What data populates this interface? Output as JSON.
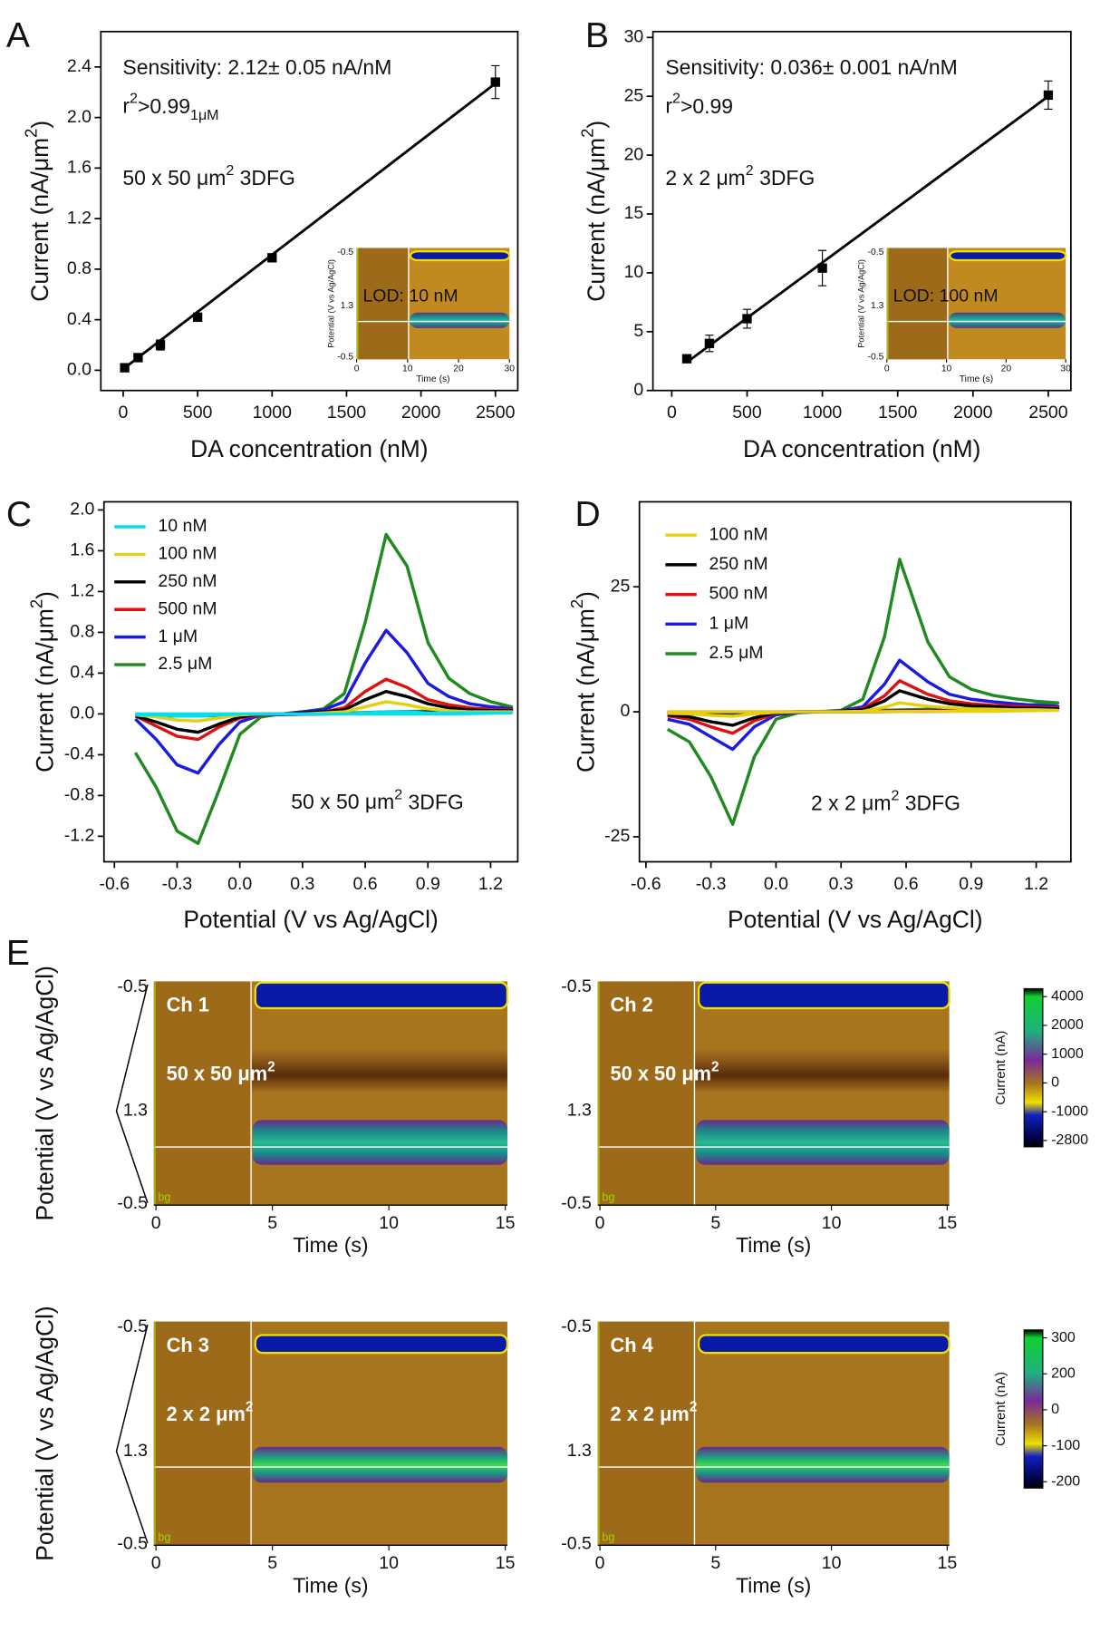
{
  "chart_data": [
    {
      "type": "scatter",
      "panel_label": "A",
      "x_label": "DA concentration (nM)",
      "y_label": [
        "Current (nA/μm",
        "2",
        ")"
      ],
      "x": [
        10,
        100,
        250,
        500,
        1000,
        2500
      ],
      "values": [
        0.02,
        0.1,
        0.2,
        0.42,
        0.89,
        2.28
      ],
      "errors": [
        0.02,
        0.02,
        0.04,
        0.03,
        0.03,
        0.13
      ],
      "color": "#000000",
      "fit": {
        "x": [
          0,
          2500
        ],
        "values": [
          0.01,
          2.27
        ]
      },
      "xlim": [
        -150,
        2650
      ],
      "ylim": [
        -0.16,
        2.68
      ],
      "xticks": [
        0,
        500,
        1000,
        1500,
        2000,
        2500
      ],
      "yticks": [
        {
          "value": 0,
          "label": "0.0"
        },
        0.4,
        0.8,
        1.2,
        1.6,
        {
          "value": 2,
          "label": "2.0"
        },
        2.4
      ],
      "sensitivity": "Sensitivity: 2.12± 0.05 nA/nM",
      "r_squared": [
        "r",
        "2",
        ">0.99"
      ],
      "r_squared_note": "1μM",
      "electrode": [
        "50 x 50 μm",
        "2",
        " 3DFG"
      ],
      "inset": {
        "label": "LOD: 10 nM",
        "x_label": "Time (s)",
        "y_label": "Potential (V vs Ag/AgCl)",
        "xlim": [
          0,
          30
        ],
        "xticks": [
          0,
          10,
          20,
          30
        ],
        "ytick_labels": [
          "-0.5",
          "1.3",
          "-0.5"
        ]
      }
    },
    {
      "type": "scatter",
      "panel_label": "B",
      "x_label": "DA concentration (nM)",
      "y_label": [
        "Current (nA/μm",
        "2",
        ")"
      ],
      "x": [
        100,
        250,
        500,
        1000,
        2500
      ],
      "values": [
        2.7,
        4.0,
        6.1,
        10.4,
        25.1
      ],
      "errors": [
        0.3,
        0.7,
        0.8,
        1.5,
        1.2
      ],
      "color": "#000000",
      "fit": {
        "x": [
          100,
          2500
        ],
        "values": [
          2.4,
          25.0
        ]
      },
      "xlim": [
        -125,
        2650
      ],
      "ylim": [
        0,
        30.5
      ],
      "xticks": [
        0,
        500,
        1000,
        1500,
        2000,
        2500
      ],
      "yticks": [
        0,
        5,
        10,
        15,
        20,
        25,
        30
      ],
      "sensitivity": "Sensitivity: 0.036± 0.001 nA/nM",
      "r_squared": [
        "r",
        "2",
        ">0.99"
      ],
      "electrode": [
        "2 x 2 μm",
        "2",
        " 3DFG"
      ],
      "inset": {
        "label": "LOD: 100 nM",
        "x_label": "Time (s)",
        "y_label": "Potential (V vs Ag/AgCl)",
        "xlim": [
          0,
          30
        ],
        "xticks": [
          0,
          10,
          20,
          30
        ],
        "ytick_labels": [
          "-0.5",
          "1.3",
          "-0.5"
        ]
      }
    },
    {
      "type": "line",
      "panel_label": "C",
      "x_label": "Potential (V vs Ag/AgCl)",
      "y_label": [
        "Current (nA/μm",
        "2",
        ")"
      ],
      "x": [
        -0.5,
        -0.4,
        -0.3,
        -0.2,
        -0.1,
        0.0,
        0.1,
        0.2,
        0.3,
        0.4,
        0.5,
        0.6,
        0.7,
        0.8,
        0.9,
        1.0,
        1.1,
        1.2,
        1.3,
        1.0,
        0.7,
        0.4,
        0.1,
        -0.2,
        -0.5
      ],
      "series": [
        {
          "name": "10 nM",
          "color": "#00e0f0",
          "values": [
            -0.01,
            -0.01,
            -0.02,
            -0.02,
            -0.01,
            0,
            0,
            0,
            0,
            0,
            0,
            0.01,
            0.02,
            0.02,
            0.01,
            0.01,
            0.01,
            0.01,
            0.01,
            0,
            0,
            0,
            0,
            0,
            0
          ]
        },
        {
          "name": "100 nM",
          "color": "#e6cf10",
          "values": [
            -0.01,
            -0.03,
            -0.06,
            -0.07,
            -0.04,
            -0.01,
            0,
            0,
            0,
            0.01,
            0.02,
            0.07,
            0.12,
            0.09,
            0.05,
            0.03,
            0.02,
            0.02,
            0.02,
            0.01,
            0,
            0,
            0,
            0,
            0
          ]
        },
        {
          "name": "250 nM",
          "color": "#000000",
          "values": [
            -0.02,
            -0.08,
            -0.15,
            -0.18,
            -0.1,
            -0.03,
            0,
            0,
            0.01,
            0.02,
            0.04,
            0.14,
            0.22,
            0.17,
            0.1,
            0.06,
            0.04,
            0.03,
            0.03,
            0.02,
            0.01,
            0,
            0,
            -0.01,
            -0.01
          ]
        },
        {
          "name": "500 nM",
          "color": "#e01010",
          "values": [
            -0.02,
            -0.12,
            -0.22,
            -0.25,
            -0.13,
            -0.04,
            -0.01,
            0,
            0.01,
            0.02,
            0.06,
            0.22,
            0.34,
            0.26,
            0.14,
            0.09,
            0.06,
            0.04,
            0.04,
            0.02,
            0.01,
            0,
            0,
            -0.01,
            -0.01
          ]
        },
        {
          "name": "1 μM",
          "color": "#1a1ae0",
          "values": [
            -0.05,
            -0.25,
            -0.5,
            -0.58,
            -0.3,
            -0.08,
            -0.01,
            0,
            0.02,
            0.04,
            0.12,
            0.5,
            0.82,
            0.6,
            0.3,
            0.17,
            0.1,
            0.07,
            0.05,
            0.02,
            0.01,
            0,
            -0.01,
            -0.01,
            -0.02
          ]
        },
        {
          "name": "2.5 μM",
          "color": "#1f8a1f",
          "values": [
            -0.38,
            -0.72,
            -1.15,
            -1.27,
            -0.75,
            -0.2,
            -0.03,
            0,
            0.02,
            0.05,
            0.2,
            0.9,
            1.76,
            1.45,
            0.7,
            0.35,
            0.2,
            0.12,
            0.07,
            0.03,
            0.02,
            0,
            -0.01,
            -0.02,
            -0.02
          ]
        }
      ],
      "xlim": [
        -0.65,
        1.33
      ],
      "ylim": [
        -1.45,
        2.08
      ],
      "xticks": [
        -0.6,
        -0.3,
        {
          "value": 0,
          "label": "0.0"
        },
        0.3,
        0.6,
        0.9,
        1.2
      ],
      "yticks": [
        -1.2,
        -0.8,
        -0.4,
        {
          "value": 0,
          "label": "0.0"
        },
        0.4,
        0.8,
        1.2,
        1.6,
        {
          "value": 2,
          "label": "2.0"
        }
      ],
      "electrode": [
        "50 x 50 μm",
        "2",
        " 3DFG"
      ]
    },
    {
      "type": "line",
      "panel_label": "D",
      "x_label": "Potential (V vs Ag/AgCl)",
      "y_label": [
        "Current (nA/μm",
        "2",
        ")"
      ],
      "x": [
        -0.5,
        -0.4,
        -0.3,
        -0.2,
        -0.1,
        0.0,
        0.1,
        0.2,
        0.3,
        0.4,
        0.5,
        0.57,
        0.7,
        0.8,
        0.9,
        1.0,
        1.1,
        1.2,
        1.3,
        1.0,
        0.7,
        0.4,
        0.1,
        -0.2,
        -0.5
      ],
      "series": [
        {
          "name": "100 nM",
          "color": "#e6cf10",
          "values": [
            -0.3,
            -0.4,
            -0.7,
            -0.9,
            -0.4,
            -0.1,
            0,
            0,
            0,
            0.1,
            0.9,
            1.8,
            1.1,
            0.8,
            0.6,
            0.5,
            0.4,
            0.4,
            0.3,
            0.1,
            0.1,
            0,
            0,
            0,
            0
          ]
        },
        {
          "name": "250 nM",
          "color": "#000000",
          "values": [
            -0.6,
            -1,
            -2,
            -2.7,
            -1.2,
            -0.2,
            0,
            0,
            0.1,
            0.4,
            2.2,
            4.2,
            2.5,
            1.6,
            1.2,
            1,
            0.8,
            0.7,
            0.6,
            0.2,
            0.1,
            0,
            0,
            -0.1,
            -0.1
          ]
        },
        {
          "name": "500 nM",
          "color": "#e01010",
          "values": [
            -0.8,
            -1.5,
            -3,
            -4.3,
            -1.8,
            -0.3,
            0,
            0,
            0.1,
            0.6,
            3.2,
            6.2,
            3.5,
            2.2,
            1.6,
            1.3,
            1.1,
            0.9,
            0.8,
            0.3,
            0.2,
            0.1,
            0,
            -0.1,
            -0.2
          ]
        },
        {
          "name": "1 μM",
          "color": "#1a1ae0",
          "values": [
            -1.5,
            -2.5,
            -5,
            -7.5,
            -3,
            -0.6,
            -0.1,
            0,
            0.2,
            1,
            5.5,
            10.3,
            6,
            3.5,
            2.5,
            2,
            1.6,
            1.3,
            1.1,
            0.5,
            0.3,
            0.1,
            0,
            -0.2,
            -0.3
          ]
        },
        {
          "name": "2.5 μM",
          "color": "#1f8a1f",
          "values": [
            -3.5,
            -6,
            -13,
            -22.5,
            -9,
            -1.5,
            -0.2,
            0,
            0.3,
            2.5,
            15,
            30.5,
            14,
            7,
            4.5,
            3.3,
            2.6,
            2.1,
            1.8,
            0.8,
            0.5,
            0.2,
            0,
            -0.3,
            -0.5
          ]
        }
      ],
      "xlim": [
        -0.63,
        1.36
      ],
      "ylim": [
        -30,
        42
      ],
      "xticks": [
        -0.6,
        -0.3,
        {
          "value": 0,
          "label": "0.0"
        },
        0.3,
        0.6,
        0.9,
        1.2
      ],
      "yticks": [
        -25,
        0,
        25
      ],
      "electrode": [
        "2 x 2 μm",
        "2",
        " 3DFG"
      ]
    },
    {
      "type": "heatmap",
      "panel_label": "E",
      "x_label": "Time (s)",
      "y_label": "Potential (V vs Ag/AgCl)",
      "xlim": [
        0,
        15
      ],
      "xticks": [
        0,
        5,
        10,
        15
      ],
      "ytick_labels": [
        "-0.5",
        "1.3",
        "-0.5"
      ],
      "rows": [
        {
          "colorbar": {
            "label": "Current (nA)",
            "ticks": [
              4000,
              2000,
              1000,
              0,
              -1000,
              -2800
            ]
          },
          "channels": [
            {
              "name": "Ch 1",
              "size": [
                "50 x 50 μm",
                "2"
              ],
              "background_label": "bg"
            },
            {
              "name": "Ch 2",
              "size": [
                "50 x 50 μm",
                "2"
              ],
              "background_label": "bg"
            }
          ]
        },
        {
          "colorbar": {
            "label": "Current (nA)",
            "ticks": [
              300,
              200,
              0,
              -100,
              -200
            ]
          },
          "channels": [
            {
              "name": "Ch 3",
              "size": [
                "2 x 2 μm",
                "2"
              ],
              "background_label": "bg"
            },
            {
              "name": "Ch 4",
              "size": [
                "2 x 2 μm",
                "2"
              ],
              "background_label": "bg"
            }
          ]
        }
      ]
    }
  ]
}
